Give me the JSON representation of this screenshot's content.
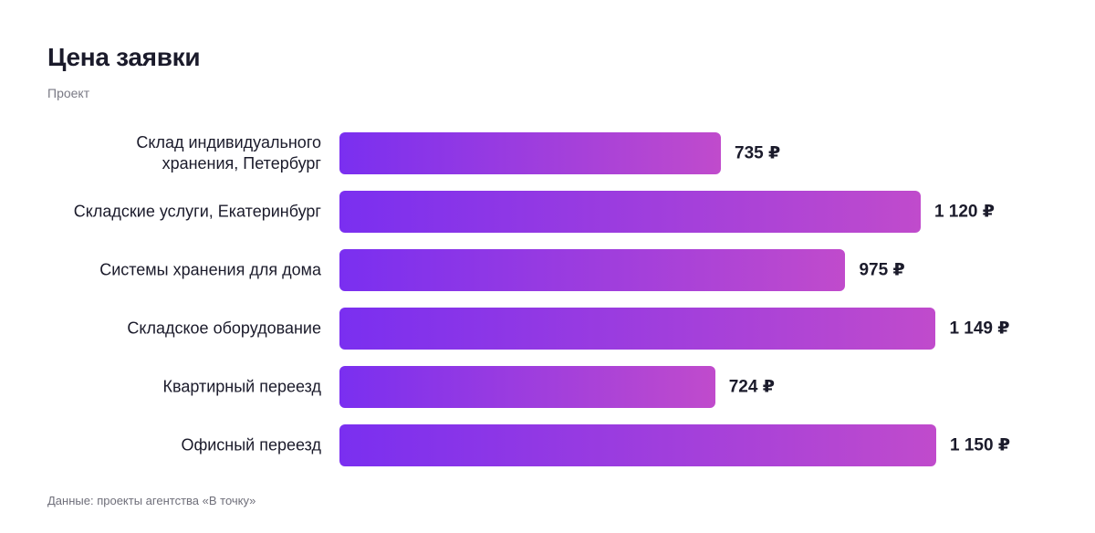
{
  "chart_data": {
    "type": "bar",
    "orientation": "horizontal",
    "title": "Цена заявки",
    "subtitle": "Проект",
    "categories": [
      "Склад индивидуального хранения, Петербург",
      "Складские услуги, Екатеринбург",
      "Системы хранения для дома",
      "Складское оборудование",
      "Квартирный переезд",
      "Офисный переезд"
    ],
    "values": [
      735,
      1120,
      975,
      1149,
      724,
      1150
    ],
    "value_labels": [
      "735 ₽",
      "1 120 ₽",
      "975 ₽",
      "1 149 ₽",
      "724 ₽",
      "1 150 ₽"
    ],
    "color": [
      "#7a2ff0",
      "#c04bcc"
    ],
    "source": "Данные: проекты агентства «В точку»"
  }
}
